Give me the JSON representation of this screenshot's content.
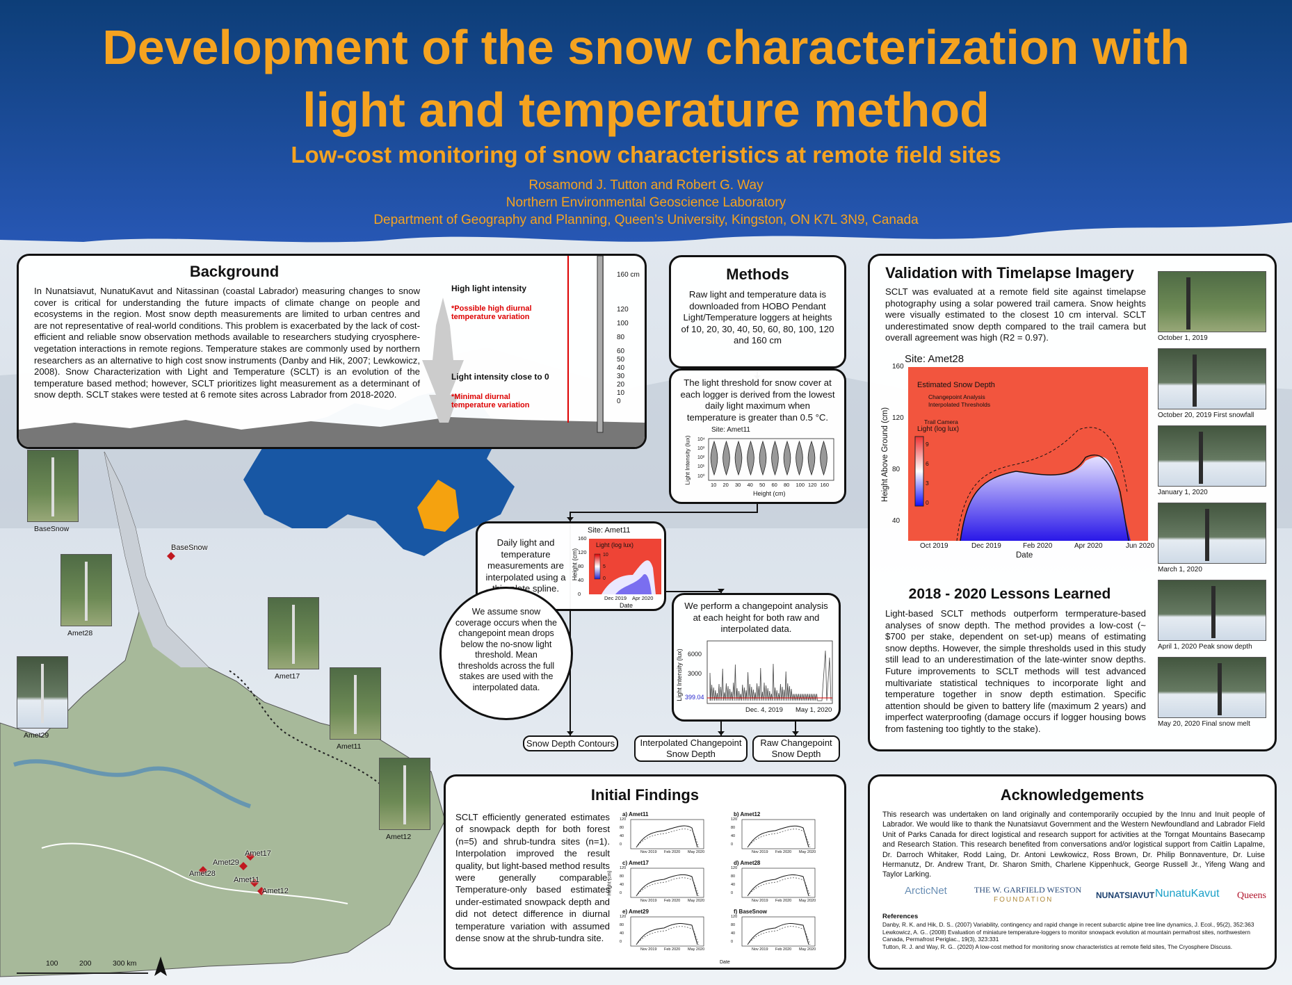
{
  "header": {
    "title_line1": "Development of the snow characterization with",
    "title_line2": "light and temperature method",
    "subtitle": "Low-cost monitoring of snow characteristics at remote field sites",
    "authors": "Rosamond J. Tutton and Robert G. Way",
    "lab": "Northern Environmental Geoscience Laboratory",
    "department": "Department of Geography and Planning, Queen’s University, Kingston, ON K7L 3N9, Canada"
  },
  "background": {
    "heading": "Background",
    "text": "In Nunatsiavut, NunatuKavut and Nitassinan (coastal Labrador) measuring changes to snow cover is critical for understanding the future impacts of climate change on people and ecosystems in the region. Most snow depth measurements are limited to urban centres and are not representative of real-world conditions. This problem is exacerbated by the lack of cost-efficient and reliable snow observation methods available to researchers studying cryosphere-vegetation interactions in remote regions. Temperature stakes are commonly used by northern researchers as an alternative to high cost snow instruments (Danby and Hik, 2007; Lewkowicz, 2008). Snow Characterization with Light and Temperature (SCLT) is an evolution of the temperature based method; however, SCLT prioritizes light measurement as a determinant of snow depth. SCLT stakes were tested at 6 remote sites across Labrador from 2018-2020.",
    "high_light": "High light intensity",
    "high_variation": "*Possible high diurnal temperature variation",
    "low_light": "Light intensity close to 0",
    "low_variation": "*Minimal diurnal temperature variation",
    "scale": [
      "160 cm",
      "120",
      "100",
      "80",
      "60",
      "50",
      "40",
      "30",
      "20",
      "10",
      "0"
    ]
  },
  "methods": {
    "heading": "Methods",
    "step1": "Raw light and temperature data is downloaded from HOBO Pendant Light/Temperature loggers at heights of 10, 20, 30, 40, 50, 60, 80, 100, 120 and 160 cm",
    "step2": "The light threshold for snow cover at each logger is derived from the lowest daily light maximum when temperature is greater than 0.5 °C.",
    "violin": {
      "site": "Site: Amet11",
      "ylabel": "Light Intensity (lux)",
      "yticks": [
        "10⁴",
        "10³",
        "10²",
        "10¹",
        "10⁰"
      ],
      "xlabel": "Height (cm)",
      "xticks": [
        "10",
        "20",
        "30",
        "40",
        "50",
        "60",
        "80",
        "100",
        "120",
        "160"
      ]
    },
    "step3": "Daily light and temperature measurements are interpolated using a thin-plate spline.",
    "contour": {
      "site": "Site: Amet11",
      "legend": "Light (log lux)",
      "cbar": [
        "10",
        "5",
        "0"
      ],
      "ylabel": "Height (cm)",
      "yticks": [
        "160",
        "120",
        "80",
        "40",
        "0"
      ],
      "xticks": [
        "Dec 2019",
        "Apr 2020"
      ],
      "xlabel": "Date"
    },
    "assume": "We assume snow coverage occurs when the changepoint mean drops below the no-snow light threshold. Mean thresholds across the full stakes are used with the interpolated data.",
    "step4": "We perform a changepoint analysis at each height for both raw and interpolated data.",
    "changepoint": {
      "ylabel": "Light Intensity (lux)",
      "yticks": [
        "6000",
        "3000",
        "399.04"
      ],
      "xticks": [
        "Dec. 4, 2019",
        "May 1, 2020"
      ]
    },
    "outputs": [
      "Snow Depth Contours",
      "Interpolated Changepoint Snow Depth",
      "Raw Changepoint Snow Depth"
    ]
  },
  "validation": {
    "heading": "Validation with Timelapse Imagery",
    "text": "SCLT was evaluated at a remote field site against timelapse photography using a solar powered trail camera. Snow heights were visually estimated to the closest 10 cm interval. SCLT underestimated snow depth compared to the trail camera but overall agreement was high (R2 = 0.97).",
    "chart": {
      "site": "Site: Amet28",
      "legend_title": "Estimated Snow Depth",
      "legend": [
        "Changepoint Analysis",
        "Interpolated Thresholds",
        "Trail Camera"
      ],
      "cbar_title": "Light (log lux)",
      "cbar": [
        "9",
        "6",
        "3",
        "0"
      ],
      "ylabel": "Height Above Ground (cm)",
      "yticks": [
        "160",
        "120",
        "80",
        "40"
      ],
      "xticks": [
        "Oct 2019",
        "Dec 2019",
        "Feb 2020",
        "Apr 2020",
        "Jun 2020"
      ],
      "xlabel": "Date"
    },
    "photos": [
      "October 1, 2019",
      "October 20, 2019 First snowfall",
      "January 1, 2020",
      "March 1, 2020",
      "April 1, 2020 Peak snow depth",
      "May 20, 2020 Final snow melt"
    ]
  },
  "lessons": {
    "heading": "2018 - 2020 Lessons Learned",
    "text": "Light-based SCLT methods outperform termperature-based analyses of snow depth. The method provides a low-cost (~ $700 per stake, dependent on set-up) means of estimating snow depths. However, the simple thresholds used in this study still lead to an underestimation of the late-winter snow depths. Future improvements to SCLT methods will test advanced multivariate statistical techniques to incorporate light and temperature together in snow depth estimation. Specific attention should be given to battery life (maximum 2 years) and imperfect waterproofing (damage occurs if logger housing bows from fastening too tightly to the stake)."
  },
  "findings": {
    "heading": "Initial Findings",
    "text": "SCLT efficiently generated estimates of snowpack depth for both forest (n=5) and shrub-tundra sites (n=1). Interpolation improved the result quality, but light-based method results were generally comparable. Temperature-only based estimates under-estimated snowpack depth and did not detect difference in diurnal temperature variation with assumed dense snow at the shrub-tundra site.",
    "panels": [
      "a) Amet11",
      "b) Amet12",
      "c) Amet17",
      "d) Amet28",
      "e) Amet29",
      "f) BaseSnow"
    ],
    "yticks": [
      "120",
      "80",
      "40",
      "0"
    ],
    "xticks": [
      "Nov 2019",
      "Feb 2020",
      "May 2020"
    ],
    "ylabel": "Height (cm)",
    "xlabel": "Date"
  },
  "acknowledgements": {
    "heading": "Acknowledgements",
    "text": "This research was undertaken on land originally and contemporarily occupied by the Innu and Inuit people of Labrador. We would like to thank the Nunatsiavut Government and the Western Newfoundland and Labrador Field Unit of Parks Canada for direct logistical and research support for activities at the Torngat Mountains Basecamp and Research Station. This research benefited from conversations and/or logistical support from Caitlin Lapalme, Dr. Darroch Whitaker, Rodd Laing, Dr. Antoni Lewkowicz, Ross Brown, Dr. Philip Bonnaventure, Dr. Luise Hermanutz, Dr. Andrew Trant, Dr. Sharon Smith, Charlene Kippenhuck, George Russell Jr., Yifeng Wang and Taylor Larking.",
    "logos": [
      "ArcticNet",
      "THE W. GARFIELD WESTON",
      "FOUNDATION",
      "NUNATSIAVUT",
      "NunatuKavut",
      "Queens"
    ],
    "references_heading": "References",
    "references": [
      "Danby, R. K. and Hik, D. S.. (2007) Variability, contingency and rapid change in recent subarctic alpine tree line dynamics, J. Ecol., 95(2), 352:363",
      "Lewkowicz, A. G.. (2008) Evaluation of miniature temperature-loggers to monitor snowpack evolution at mountain permafrost sites, northwestern Canada, Permafrost Periglac., 19(3), 323:331",
      "Tutton, R. J. and Way, R. G.. (2020) A low-cost method for monitoring snow characteristics at remote field sites, The Cryosphere Discuss."
    ]
  },
  "map": {
    "sites": [
      "BaseSnow",
      "Amet17",
      "Amet29",
      "Amet28",
      "Amet11",
      "Amet12"
    ],
    "photos": [
      "BaseSnow",
      "Amet28",
      "Amet17",
      "Amet29",
      "Amet11",
      "Amet12"
    ],
    "scale": [
      "100",
      "200",
      "300 km"
    ]
  }
}
